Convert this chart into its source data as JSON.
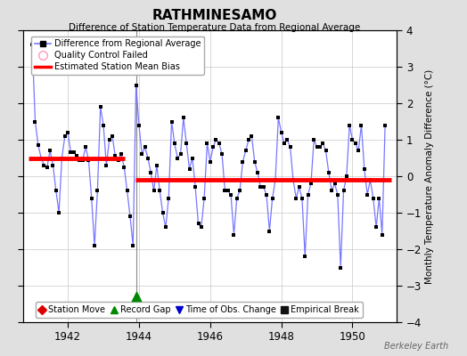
{
  "title": "RATHMINESAMO",
  "subtitle": "Difference of Station Temperature Data from Regional Average",
  "ylabel": "Monthly Temperature Anomaly Difference (°C)",
  "ylim": [
    -4,
    4
  ],
  "xlim_start": 1940.75,
  "xlim_end": 1951.25,
  "xticks": [
    1942,
    1944,
    1946,
    1948,
    1950
  ],
  "yticks": [
    -4,
    -3,
    -2,
    -1,
    0,
    1,
    2,
    3,
    4
  ],
  "bg_color": "#e0e0e0",
  "plot_bg_color": "#ffffff",
  "grid_color": "#c8c8c8",
  "line_color": "#7777ff",
  "marker_color": "#000000",
  "bias1_start": 1940.9,
  "bias1_end": 1943.6,
  "bias1_value": 0.5,
  "bias2_start": 1943.9,
  "bias2_end": 1951.1,
  "bias2_value": -0.1,
  "record_gap_x": 1943.917,
  "record_gap_y": -3.3,
  "vertical_line_x": 1943.917,
  "data": [
    [
      1941.0,
      3.6
    ],
    [
      1941.083,
      1.5
    ],
    [
      1941.167,
      0.85
    ],
    [
      1941.25,
      0.5
    ],
    [
      1941.333,
      0.3
    ],
    [
      1941.417,
      0.25
    ],
    [
      1941.5,
      0.7
    ],
    [
      1941.583,
      0.3
    ],
    [
      1941.667,
      -0.4
    ],
    [
      1941.75,
      -1.0
    ],
    [
      1941.833,
      0.5
    ],
    [
      1941.917,
      1.1
    ],
    [
      1942.0,
      1.2
    ],
    [
      1942.083,
      0.65
    ],
    [
      1942.167,
      0.65
    ],
    [
      1942.25,
      0.55
    ],
    [
      1942.333,
      0.45
    ],
    [
      1942.417,
      0.45
    ],
    [
      1942.5,
      0.8
    ],
    [
      1942.583,
      0.45
    ],
    [
      1942.667,
      -0.6
    ],
    [
      1942.75,
      -1.9
    ],
    [
      1942.833,
      -0.4
    ],
    [
      1942.917,
      1.9
    ],
    [
      1943.0,
      1.4
    ],
    [
      1943.083,
      0.3
    ],
    [
      1943.167,
      1.0
    ],
    [
      1943.25,
      1.1
    ],
    [
      1943.333,
      0.55
    ],
    [
      1943.417,
      0.45
    ],
    [
      1943.5,
      0.6
    ],
    [
      1943.583,
      0.25
    ],
    [
      1943.667,
      -0.4
    ],
    [
      1943.75,
      -1.1
    ],
    [
      1943.833,
      -1.9
    ],
    [
      1943.917,
      2.5
    ],
    [
      1944.0,
      1.4
    ],
    [
      1944.083,
      0.6
    ],
    [
      1944.167,
      0.8
    ],
    [
      1944.25,
      0.5
    ],
    [
      1944.333,
      0.1
    ],
    [
      1944.417,
      -0.4
    ],
    [
      1944.5,
      0.3
    ],
    [
      1944.583,
      -0.4
    ],
    [
      1944.667,
      -1.0
    ],
    [
      1944.75,
      -1.4
    ],
    [
      1944.833,
      -0.6
    ],
    [
      1944.917,
      1.5
    ],
    [
      1945.0,
      0.9
    ],
    [
      1945.083,
      0.5
    ],
    [
      1945.167,
      0.6
    ],
    [
      1945.25,
      1.6
    ],
    [
      1945.333,
      0.9
    ],
    [
      1945.417,
      0.2
    ],
    [
      1945.5,
      0.5
    ],
    [
      1945.583,
      -0.3
    ],
    [
      1945.667,
      -1.3
    ],
    [
      1945.75,
      -1.4
    ],
    [
      1945.833,
      -0.6
    ],
    [
      1945.917,
      0.9
    ],
    [
      1946.0,
      0.4
    ],
    [
      1946.083,
      0.8
    ],
    [
      1946.167,
      1.0
    ],
    [
      1946.25,
      0.9
    ],
    [
      1946.333,
      0.6
    ],
    [
      1946.417,
      -0.4
    ],
    [
      1946.5,
      -0.4
    ],
    [
      1946.583,
      -0.5
    ],
    [
      1946.667,
      -1.6
    ],
    [
      1946.75,
      -0.6
    ],
    [
      1946.833,
      -0.4
    ],
    [
      1946.917,
      0.4
    ],
    [
      1947.0,
      0.7
    ],
    [
      1947.083,
      1.0
    ],
    [
      1947.167,
      1.1
    ],
    [
      1947.25,
      0.4
    ],
    [
      1947.333,
      0.1
    ],
    [
      1947.417,
      -0.3
    ],
    [
      1947.5,
      -0.3
    ],
    [
      1947.583,
      -0.5
    ],
    [
      1947.667,
      -1.5
    ],
    [
      1947.75,
      -0.6
    ],
    [
      1947.833,
      -0.1
    ],
    [
      1947.917,
      1.6
    ],
    [
      1948.0,
      1.2
    ],
    [
      1948.083,
      0.9
    ],
    [
      1948.167,
      1.0
    ],
    [
      1948.25,
      0.8
    ],
    [
      1948.333,
      -0.1
    ],
    [
      1948.417,
      -0.6
    ],
    [
      1948.5,
      -0.3
    ],
    [
      1948.583,
      -0.6
    ],
    [
      1948.667,
      -2.2
    ],
    [
      1948.75,
      -0.5
    ],
    [
      1948.833,
      -0.2
    ],
    [
      1948.917,
      1.0
    ],
    [
      1949.0,
      0.8
    ],
    [
      1949.083,
      0.8
    ],
    [
      1949.167,
      0.9
    ],
    [
      1949.25,
      0.7
    ],
    [
      1949.333,
      0.1
    ],
    [
      1949.417,
      -0.4
    ],
    [
      1949.5,
      -0.2
    ],
    [
      1949.583,
      -0.5
    ],
    [
      1949.667,
      -2.5
    ],
    [
      1949.75,
      -0.4
    ],
    [
      1949.833,
      0.0
    ],
    [
      1949.917,
      1.4
    ],
    [
      1950.0,
      1.0
    ],
    [
      1950.083,
      0.9
    ],
    [
      1950.167,
      0.7
    ],
    [
      1950.25,
      1.4
    ],
    [
      1950.333,
      0.2
    ],
    [
      1950.417,
      -0.5
    ],
    [
      1950.5,
      -0.1
    ],
    [
      1950.583,
      -0.6
    ],
    [
      1950.667,
      -1.4
    ],
    [
      1950.75,
      -0.6
    ],
    [
      1950.833,
      -1.6
    ],
    [
      1950.917,
      1.4
    ]
  ],
  "watermark": "Berkeley Earth",
  "legend1_label": "Difference from Regional Average",
  "legend2_label": "Quality Control Failed",
  "legend3_label": "Estimated Station Mean Bias",
  "bottom_legend": [
    {
      "marker": "D",
      "color": "#dd0000",
      "label": "Station Move"
    },
    {
      "marker": "^",
      "color": "#008800",
      "label": "Record Gap"
    },
    {
      "marker": "v",
      "color": "#0000cc",
      "label": "Time of Obs. Change"
    },
    {
      "marker": "s",
      "color": "#111111",
      "label": "Empirical Break"
    }
  ]
}
